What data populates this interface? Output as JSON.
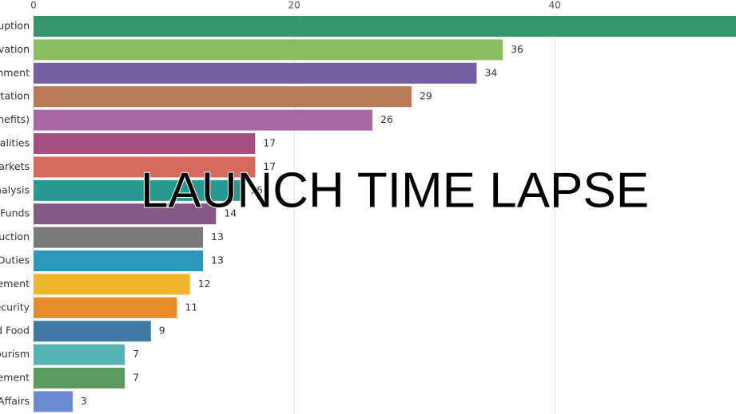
{
  "chart_data": {
    "type": "bar",
    "orientation": "horizontal",
    "categories": [
      "uption",
      "vation",
      "nment",
      "rtation",
      "nefits)",
      "palities",
      "arkets",
      "nalysis",
      "Funds",
      "uction",
      "Duties",
      "ement",
      "ecurity",
      "d Food",
      "ourism",
      "ement",
      "Affairs"
    ],
    "values": [
      55,
      36,
      34,
      29,
      26,
      17,
      17,
      16,
      14,
      13,
      13,
      12,
      11,
      9,
      7,
      7,
      3
    ],
    "colors": [
      "#35956b",
      "#8bbd62",
      "#7460a0",
      "#b87a57",
      "#a866a3",
      "#a65080",
      "#d8695d",
      "#27998f",
      "#845a85",
      "#7a7a7a",
      "#2a9abc",
      "#f0b72e",
      "#e68c2a",
      "#3f7aa5",
      "#56b3b4",
      "#5d9a5e",
      "#6b8ad0"
    ],
    "xlim": [
      0,
      53.9
    ],
    "xticks": [
      0,
      20,
      40
    ],
    "grid": true,
    "annotation": "LAUNCH TIME LAPSE"
  }
}
